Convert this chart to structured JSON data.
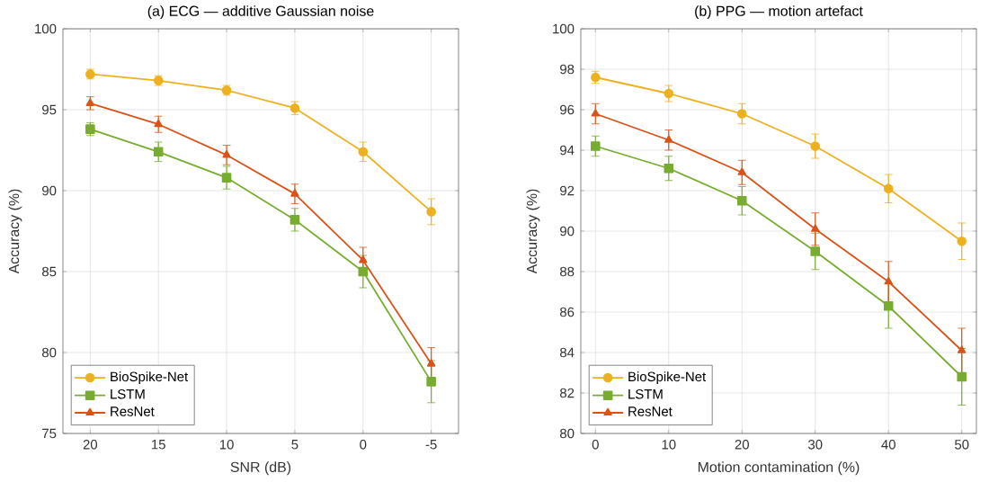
{
  "chart_data": [
    {
      "type": "line",
      "title": "(a) ECG — additive Gaussian noise",
      "xlabel": "SNR (dB)",
      "ylabel": "Accuracy (%)",
      "categories": [
        "20",
        "15",
        "10",
        "5",
        "0",
        "-5"
      ],
      "ylim": [
        75,
        100
      ],
      "yticks": [
        75,
        80,
        85,
        90,
        95,
        100
      ],
      "grid": true,
      "legend": "bottom left",
      "line_style": "solid",
      "series": [
        {
          "name": "BioSpike-Net",
          "color": "#edb120",
          "marker": "circle",
          "values": [
            97.2,
            96.8,
            96.2,
            95.1,
            92.4,
            88.7
          ],
          "errors": [
            0.3,
            0.3,
            0.3,
            0.4,
            0.6,
            0.8
          ]
        },
        {
          "name": "LSTM",
          "color": "#77ac30",
          "marker": "square",
          "values": [
            93.8,
            92.4,
            90.8,
            88.2,
            85.0,
            78.2
          ],
          "errors": [
            0.4,
            0.6,
            0.7,
            0.7,
            1.0,
            1.3
          ]
        },
        {
          "name": "ResNet",
          "color": "#d95319",
          "marker": "triangle",
          "values": [
            95.4,
            94.1,
            92.2,
            89.8,
            85.7,
            79.3
          ],
          "errors": [
            0.4,
            0.5,
            0.6,
            0.6,
            0.8,
            1.0
          ]
        }
      ]
    },
    {
      "type": "line",
      "title": "(b) PPG — motion artefact",
      "xlabel": "Motion contamination (%)",
      "ylabel": "Accuracy (%)",
      "x": [
        0,
        10,
        20,
        30,
        40,
        50
      ],
      "xlim": [
        -2,
        52
      ],
      "xticks": [
        0,
        10,
        20,
        30,
        40,
        50
      ],
      "ylim": [
        80,
        100
      ],
      "yticks": [
        80,
        82,
        84,
        86,
        88,
        90,
        92,
        94,
        96,
        98,
        100
      ],
      "grid": true,
      "legend": "bottom left",
      "line_style": "solid",
      "series": [
        {
          "name": "BioSpike-Net",
          "color": "#edb120",
          "marker": "circle",
          "values": [
            97.6,
            96.8,
            95.8,
            94.2,
            92.1,
            89.5
          ],
          "errors": [
            0.3,
            0.4,
            0.5,
            0.6,
            0.7,
            0.9
          ]
        },
        {
          "name": "LSTM",
          "color": "#77ac30",
          "marker": "square",
          "values": [
            94.2,
            93.1,
            91.5,
            89.0,
            86.3,
            82.8
          ],
          "errors": [
            0.5,
            0.6,
            0.7,
            0.9,
            1.1,
            1.4
          ]
        },
        {
          "name": "ResNet",
          "color": "#d95319",
          "marker": "triangle",
          "values": [
            95.8,
            94.5,
            92.9,
            90.1,
            87.5,
            84.1
          ],
          "errors": [
            0.5,
            0.5,
            0.6,
            0.8,
            1.0,
            1.1
          ]
        }
      ]
    }
  ]
}
